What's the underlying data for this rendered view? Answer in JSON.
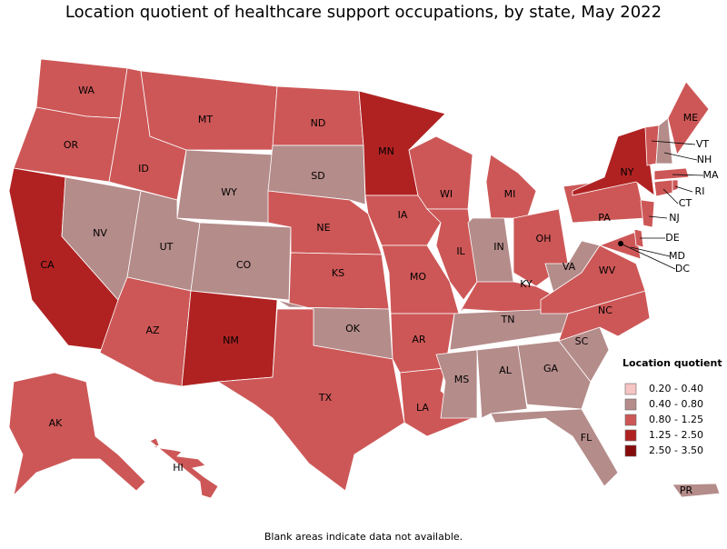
{
  "title": "Location quotient of healthcare support occupations, by state, May 2022",
  "legend": {
    "title": "Location quotient",
    "bins": [
      {
        "label": "0.20 - 0.40",
        "color": "#f7c4c4"
      },
      {
        "label": "0.40 - 0.80",
        "color": "#b48c8a"
      },
      {
        "label": "0.80 - 1.25",
        "color": "#cd5757"
      },
      {
        "label": "1.25 - 2.50",
        "color": "#b02222"
      },
      {
        "label": "2.50 - 3.50",
        "color": "#870a0a"
      }
    ]
  },
  "states": [
    {
      "label": "WA",
      "bin": 2
    },
    {
      "label": "OR",
      "bin": 2
    },
    {
      "label": "CA",
      "bin": 3
    },
    {
      "label": "NV",
      "bin": 1
    },
    {
      "label": "ID",
      "bin": 2
    },
    {
      "label": "MT",
      "bin": 2
    },
    {
      "label": "WY",
      "bin": 1
    },
    {
      "label": "UT",
      "bin": 1
    },
    {
      "label": "CO",
      "bin": 1
    },
    {
      "label": "AZ",
      "bin": 2
    },
    {
      "label": "NM",
      "bin": 3
    },
    {
      "label": "ND",
      "bin": 2
    },
    {
      "label": "SD",
      "bin": 1
    },
    {
      "label": "NE",
      "bin": 2
    },
    {
      "label": "KS",
      "bin": 2
    },
    {
      "label": "OK",
      "bin": 1
    },
    {
      "label": "TX",
      "bin": 2
    },
    {
      "label": "MN",
      "bin": 3
    },
    {
      "label": "IA",
      "bin": 2
    },
    {
      "label": "MO",
      "bin": 2
    },
    {
      "label": "AR",
      "bin": 2
    },
    {
      "label": "LA",
      "bin": 2
    },
    {
      "label": "WI",
      "bin": 2
    },
    {
      "label": "IL",
      "bin": 2
    },
    {
      "label": "MI",
      "bin": 2
    },
    {
      "label": "IN",
      "bin": 1
    },
    {
      "label": "OH",
      "bin": 2
    },
    {
      "label": "KY",
      "bin": 2
    },
    {
      "label": "TN",
      "bin": 1
    },
    {
      "label": "MS",
      "bin": 1
    },
    {
      "label": "AL",
      "bin": 1
    },
    {
      "label": "GA",
      "bin": 1
    },
    {
      "label": "FL",
      "bin": 1
    },
    {
      "label": "SC",
      "bin": 1
    },
    {
      "label": "NC",
      "bin": 2
    },
    {
      "label": "VA",
      "bin": 1
    },
    {
      "label": "WV",
      "bin": 2
    },
    {
      "label": "PA",
      "bin": 2
    },
    {
      "label": "NY",
      "bin": 3
    },
    {
      "label": "MD",
      "bin": 2
    },
    {
      "label": "DE",
      "bin": 2
    },
    {
      "label": "NJ",
      "bin": 2
    },
    {
      "label": "CT",
      "bin": 2
    },
    {
      "label": "RI",
      "bin": 2
    },
    {
      "label": "MA",
      "bin": 2
    },
    {
      "label": "VT",
      "bin": 2
    },
    {
      "label": "NH",
      "bin": 1
    },
    {
      "label": "ME",
      "bin": 2
    },
    {
      "label": "DC",
      "bin": 2
    },
    {
      "label": "AK",
      "bin": 2
    },
    {
      "label": "HI",
      "bin": 2
    },
    {
      "label": "PR",
      "bin": 1
    }
  ],
  "note": "Blank areas indicate data not available."
}
